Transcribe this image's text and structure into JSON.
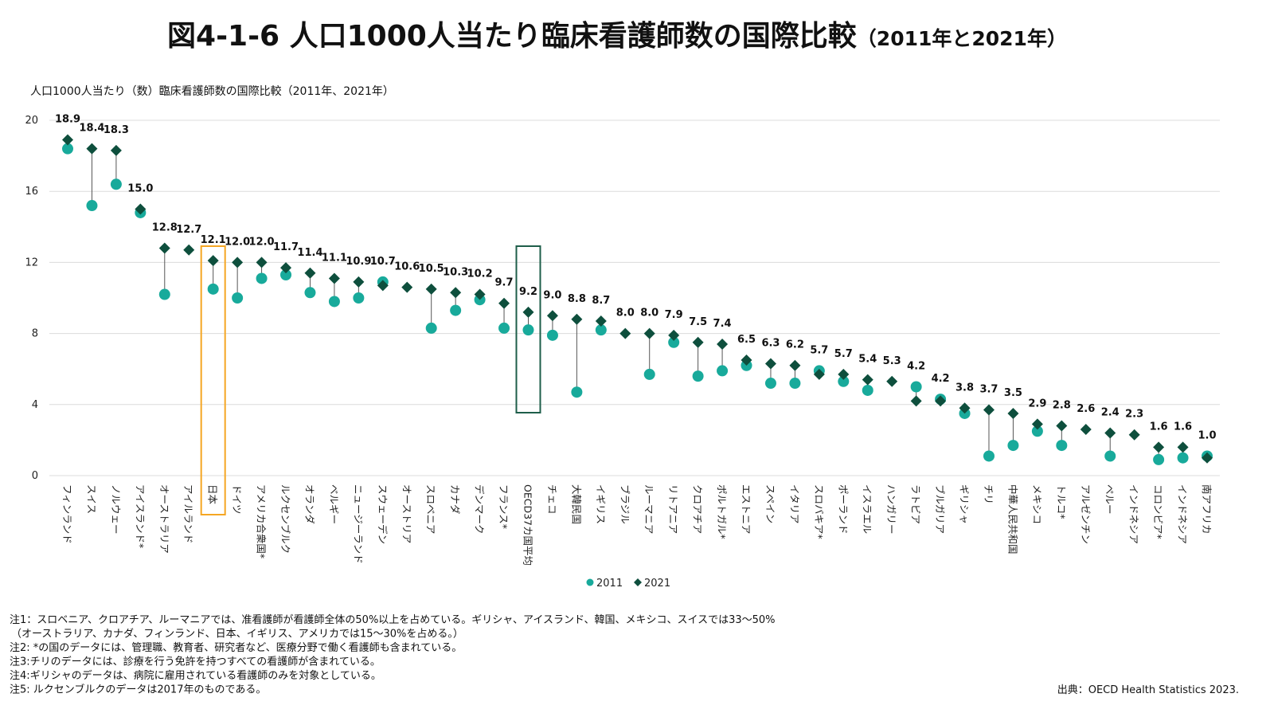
{
  "chart_data": {
    "type": "dumbbell",
    "title": "図4-1-6 人口1000人当たり臨床看護師数の国際比較",
    "title_note": "（2011年と2021年）",
    "subtitle": "人口1000人当たり（数）臨床看護師数の国際比較（2011年、2021年）",
    "categories": [
      "フィンランド",
      "スイス",
      "ノルウェー",
      "アイスランド*",
      "オーストラリア",
      "アイルランド",
      "日本",
      "ドイツ",
      "アメリカ合衆国*",
      "ルクセンブルク",
      "オランダ",
      "ベルギー",
      "ニュージーランド",
      "スウェーデン",
      "オーストリア",
      "スロベニア",
      "カナダ",
      "デンマーク",
      "フランス*",
      "OECD37カ国平均",
      "チェコ",
      "大韓民国",
      "イギリス",
      "ブラジル",
      "ルーマニア",
      "リトアニア",
      "クロアチア",
      "ポルトガル*",
      "エストニア",
      "スペイン",
      "イタリア",
      "スロバキア*",
      "ポーランド",
      "イスラエル",
      "ハンガリー",
      "ラトビア",
      "ブルガリア",
      "ギリシャ",
      "チリ",
      "中華人民共和国",
      "メキシコ",
      "トルコ*",
      "アルゼンチン",
      "ペルー",
      "インドネシア",
      "コロンビア*",
      "インドネシア",
      "南アフリカ"
    ],
    "series": [
      {
        "name": "2011",
        "color": "#18aa9b",
        "marker": "circle",
        "values": [
          18.4,
          15.2,
          16.4,
          14.8,
          10.2,
          null,
          10.5,
          10.0,
          11.1,
          11.3,
          10.3,
          9.8,
          10.0,
          10.9,
          null,
          8.3,
          9.3,
          9.9,
          8.3,
          8.2,
          7.9,
          4.7,
          8.2,
          null,
          5.7,
          7.5,
          5.6,
          5.9,
          6.2,
          5.2,
          5.2,
          5.9,
          5.3,
          4.8,
          null,
          5.0,
          4.3,
          3.5,
          1.1,
          1.7,
          2.5,
          1.7,
          null,
          1.1,
          null,
          0.9,
          1.0,
          1.1
        ]
      },
      {
        "name": "2021",
        "color": "#0e4f3d",
        "marker": "diamond",
        "values": [
          18.9,
          18.4,
          18.3,
          15.0,
          12.8,
          12.7,
          12.1,
          12.0,
          12.0,
          11.7,
          11.4,
          11.1,
          10.9,
          10.7,
          10.6,
          10.5,
          10.3,
          10.2,
          9.7,
          9.2,
          9.0,
          8.8,
          8.7,
          8.0,
          8.0,
          7.9,
          7.5,
          7.4,
          6.5,
          6.3,
          6.2,
          5.7,
          5.7,
          5.4,
          5.3,
          4.2,
          4.2,
          3.8,
          3.7,
          3.5,
          2.9,
          2.8,
          2.6,
          2.4,
          2.3,
          1.6,
          1.6,
          1.0
        ],
        "value_labels": [
          "18.9",
          "18.4",
          "18.3",
          "15.0",
          "12.8",
          "12.7",
          "12.1",
          "12.0",
          "12.0",
          "11.7",
          "11.4",
          "11.1",
          "10.9",
          "10.7",
          "10.6",
          "10.5",
          "10.3",
          "10.2",
          "9.7",
          "9.2",
          "9.0",
          "8.8",
          "8.7",
          "8.0",
          "8.0",
          "7.9",
          "7.5",
          "7.4",
          "6.5",
          "6.3",
          "6.2",
          "5.7",
          "5.7",
          "5.4",
          "5.3",
          "4.2",
          "4.2",
          "3.8",
          "3.7",
          "3.5",
          "2.9",
          "2.8",
          "2.6",
          "2.4",
          "2.3",
          "1.6",
          "1.6",
          "1.0"
        ]
      }
    ],
    "ylim": [
      0,
      20
    ],
    "yticks": [
      0,
      4,
      8,
      12,
      16,
      20
    ],
    "grid": true,
    "notes": [
      "注1：スロベニア、クロアチア、ルーマニアでは、准看護師が看護師全体の50%以上を占めている。ギリシャ、アイスランド、韓国、メキシコ、スイスでは33〜50%",
      "（オーストラリア、カナダ、フィンランド、日本、イギリス、アメリカでは15〜30%を占める。）",
      "注2: *の国のデータには、管理職、教育者、研究者など、医療分野で働く看護師も含まれている。",
      "注3:チリのデータには、診療を行う免許を持つすべての看護師が含まれている。",
      "注4:ギリシャのデータは、病院に雇用されている看護師のみを対象としている。",
      "注5: ルクセンブルクのデータは2017年のものである。"
    ],
    "source": "出典：OECD Health Statistics 2023."
  }
}
